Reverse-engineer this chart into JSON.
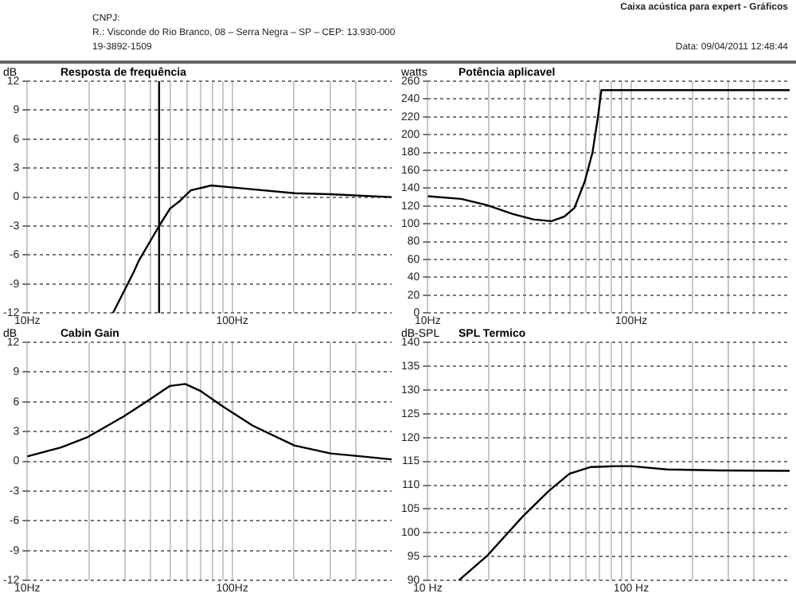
{
  "chart_data": [
    {
      "type": "line",
      "title": "Resposta de frequência",
      "ylabel": "dB",
      "annotations": [
        "CNPJ:",
        "R.: Visconde do Rio Branco, 08 – Serra Negra – SP – CEP: 13.930-000",
        "19-3892-1509",
        "Caixa acústica para expert - Gráficos",
        "Data: 09/04/2011 12:48:44"
      ],
      "log": "x",
      "xlim": [
        10,
        600
      ],
      "xticks": [
        {
          "value": 10,
          "label": "10Hz"
        },
        {
          "value": 20,
          "label": null
        },
        {
          "value": 30,
          "label": null
        },
        {
          "value": 40,
          "label": null
        },
        {
          "value": 50,
          "label": null
        },
        {
          "value": 60,
          "label": null
        },
        {
          "value": 70,
          "label": null
        },
        {
          "value": 80,
          "label": null
        },
        {
          "value": 90,
          "label": null
        },
        {
          "value": 100,
          "label": "100Hz"
        },
        {
          "value": 200,
          "label": null
        },
        {
          "value": 300,
          "label": null
        },
        {
          "value": 400,
          "label": null
        }
      ],
      "ylim": [
        -12,
        12
      ],
      "yticks": [
        -12,
        -9,
        -6,
        -3,
        0,
        3,
        6,
        9,
        12
      ],
      "grid": true,
      "legend": false,
      "marker": "none",
      "ref_lines": [
        {
          "axis": "x",
          "value": 44,
          "color": "#000000"
        }
      ],
      "series": [
        {
          "color": "#000000",
          "x": [
            26.2,
            33,
            35,
            44,
            49.7,
            55.6,
            62.8,
            79,
            112,
            202,
            301,
            600
          ],
          "values": [
            -12,
            -7.8,
            -6.6,
            -3,
            -1.2,
            -0.4,
            0.7,
            1.2,
            0.9,
            0.4,
            0.3,
            0
          ]
        }
      ]
    },
    {
      "type": "line",
      "title": "Potência aplicavel",
      "ylabel": "watts",
      "log": "x",
      "xlim": [
        10,
        600
      ],
      "xticks": [
        {
          "value": 10,
          "label": "10Hz"
        },
        {
          "value": 20,
          "label": null
        },
        {
          "value": 30,
          "label": null
        },
        {
          "value": 40,
          "label": null
        },
        {
          "value": 50,
          "label": null
        },
        {
          "value": 60,
          "label": null
        },
        {
          "value": 70,
          "label": null
        },
        {
          "value": 80,
          "label": null
        },
        {
          "value": 90,
          "label": null
        },
        {
          "value": 100,
          "label": "100Hz"
        },
        {
          "value": 200,
          "label": null
        },
        {
          "value": 300,
          "label": null
        },
        {
          "value": 400,
          "label": null
        }
      ],
      "ylim": [
        0,
        260
      ],
      "yticks": [
        0,
        20,
        40,
        60,
        80,
        100,
        120,
        140,
        160,
        180,
        200,
        220,
        240,
        260
      ],
      "grid": true,
      "legend": false,
      "marker": "none",
      "series": [
        {
          "color": "#000000",
          "x": [
            10,
            14.6,
            19.5,
            26.2,
            33,
            40.5,
            46.8,
            52.6,
            59,
            64.5,
            68.5,
            71.3,
            600
          ],
          "values": [
            131,
            128,
            121,
            111,
            105,
            103,
            108,
            118,
            147,
            180,
            219,
            250,
            250
          ]
        }
      ]
    },
    {
      "type": "line",
      "title": "Cabin Gain",
      "ylabel": "dB",
      "log": "x",
      "xlim": [
        10,
        600
      ],
      "xticks": [
        {
          "value": 10,
          "label": "10Hz"
        },
        {
          "value": 20,
          "label": null
        },
        {
          "value": 30,
          "label": null
        },
        {
          "value": 40,
          "label": null
        },
        {
          "value": 50,
          "label": null
        },
        {
          "value": 60,
          "label": null
        },
        {
          "value": 70,
          "label": null
        },
        {
          "value": 80,
          "label": null
        },
        {
          "value": 90,
          "label": null
        },
        {
          "value": 100,
          "label": "100Hz"
        },
        {
          "value": 200,
          "label": null
        },
        {
          "value": 300,
          "label": null
        },
        {
          "value": 400,
          "label": null
        }
      ],
      "ylim": [
        -12,
        12
      ],
      "yticks": [
        -12,
        -9,
        -6,
        -3,
        0,
        3,
        6,
        9,
        12
      ],
      "grid": true,
      "legend": false,
      "marker": "none",
      "series": [
        {
          "color": "#000000",
          "x": [
            10,
            14.6,
            19.5,
            29.4,
            39.4,
            49.7,
            59,
            70,
            89,
            126,
            201,
            302,
            428,
            600
          ],
          "values": [
            0.5,
            1.4,
            2.4,
            4.5,
            6.2,
            7.6,
            7.8,
            7.1,
            5.6,
            3.6,
            1.6,
            0.8,
            0.5,
            0.2
          ]
        }
      ]
    },
    {
      "type": "line",
      "title": "SPL Termico",
      "ylabel": "dB-SPL",
      "log": "x",
      "xlim": [
        10,
        600
      ],
      "xticks": [
        {
          "value": 10,
          "label": "10 Hz"
        },
        {
          "value": 20,
          "label": null
        },
        {
          "value": 30,
          "label": null
        },
        {
          "value": 40,
          "label": null
        },
        {
          "value": 50,
          "label": null
        },
        {
          "value": 60,
          "label": null
        },
        {
          "value": 70,
          "label": null
        },
        {
          "value": 80,
          "label": null
        },
        {
          "value": 90,
          "label": null
        },
        {
          "value": 100,
          "label": "100 Hz"
        },
        {
          "value": 200,
          "label": null
        },
        {
          "value": 300,
          "label": null
        },
        {
          "value": 400,
          "label": null
        }
      ],
      "ylim": [
        90,
        140
      ],
      "yticks": [
        90,
        95,
        100,
        105,
        110,
        115,
        120,
        125,
        130,
        135,
        140
      ],
      "grid": true,
      "legend": false,
      "marker": "none",
      "series": [
        {
          "color": "#000000",
          "x": [
            14.2,
            19.5,
            29.4,
            39.4,
            49.7,
            62.8,
            83.6,
            100,
            150,
            270,
            600
          ],
          "values": [
            90,
            95.1,
            103.5,
            108.8,
            112.4,
            113.8,
            114,
            114,
            113.3,
            113.1,
            113
          ]
        }
      ]
    }
  ]
}
